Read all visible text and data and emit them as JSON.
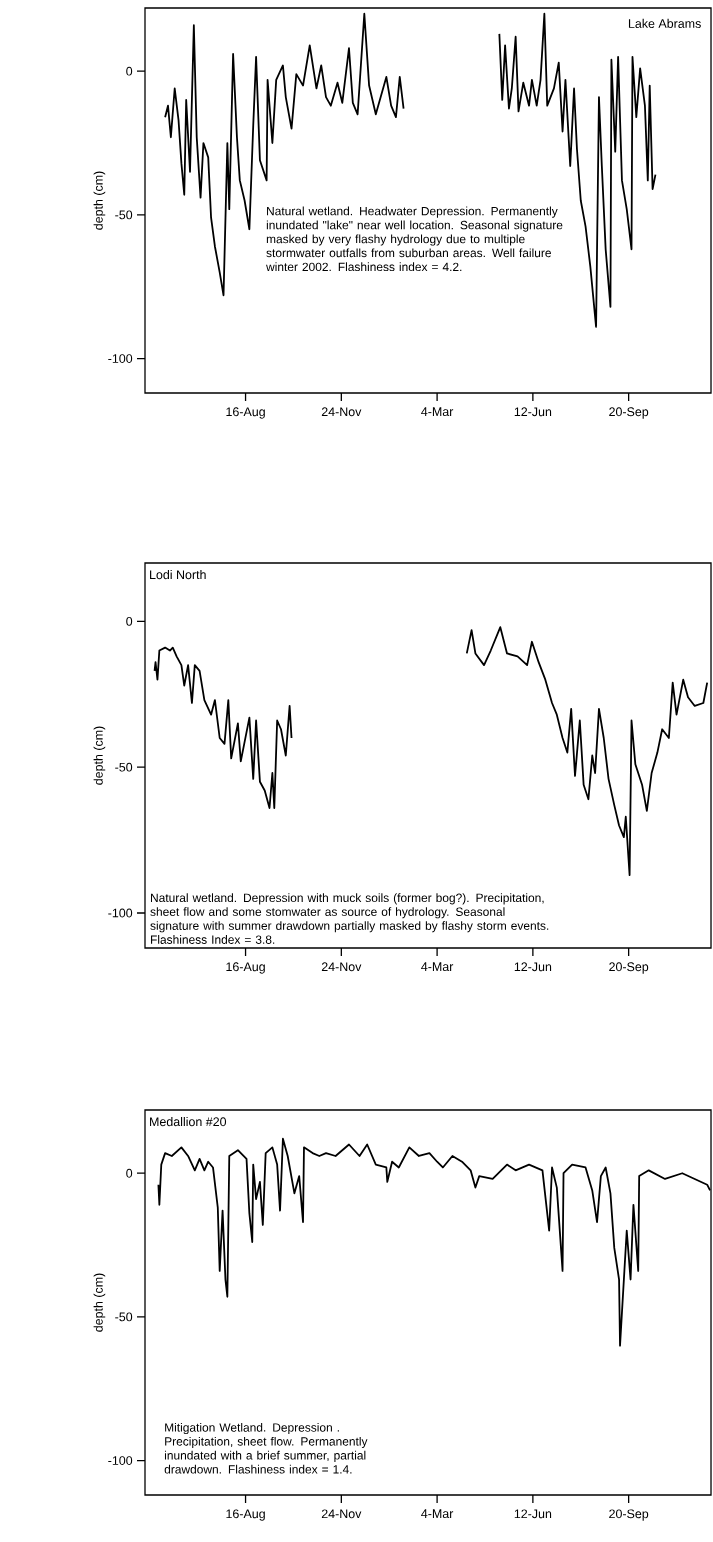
{
  "chart_data": [
    {
      "type": "line",
      "title": "Lake Abrams",
      "ylabel": "depth (cm)",
      "color": "#000000",
      "annotations": [
        "Natural wetland. Headwater Depression. Permanently inundated \"lake\" near well location. Seasonal signature masked by very flashy hydrology due to multiple stormwater outfalls from suburban areas. Well failure winter 2002. Flashiness index = 4.2."
      ],
      "xlim": [
        "2001-05-03",
        "2002-12-15"
      ],
      "ylim": [
        -112,
        22
      ],
      "xticks": [
        {
          "value": "2001-08-16",
          "label": "16-Aug"
        },
        {
          "value": "2001-11-24",
          "label": "24-Nov"
        },
        {
          "value": "2002-03-04",
          "label": "4-Mar"
        },
        {
          "value": "2002-06-12",
          "label": "12-Jun"
        },
        {
          "value": "2002-09-20",
          "label": "20-Sep"
        }
      ],
      "yticks": [
        0,
        -50,
        -100
      ],
      "x": [
        "2001-05-24",
        "2001-05-27",
        "2001-05-30",
        "2001-06-03",
        "2001-06-07",
        "2001-06-10",
        "2001-06-13",
        "2001-06-15",
        "2001-06-19",
        "2001-06-23",
        "2001-06-26",
        "2001-06-30",
        "2001-07-03",
        "2001-07-08",
        "2001-07-11",
        "2001-07-15",
        "2001-07-20",
        "2001-07-24",
        "2001-07-28",
        "2001-07-30",
        "2001-08-03",
        "2001-08-07",
        "2001-08-10",
        "2001-08-15",
        "2001-08-20",
        "2001-08-24",
        "2001-08-27",
        "2001-08-31",
        "2001-09-07",
        "2001-09-08",
        "2001-09-13",
        "2001-09-17",
        "2001-09-24",
        "2001-09-27",
        "2001-10-03",
        "2001-10-08",
        "2001-10-15",
        "2001-10-22",
        "2001-10-29",
        "2001-11-03",
        "2001-11-08",
        "2001-11-13",
        "2001-11-20",
        "2001-11-25",
        "2001-12-02",
        "2001-12-06",
        "2001-12-11",
        "2001-12-18",
        "2001-12-23",
        "2001-12-30",
        "2002-01-10",
        "2002-01-15",
        "2002-01-20",
        "2002-01-24",
        "2002-01-28",
        "2002-03-19",
        "2002-05-08",
        "2002-05-11",
        "2002-05-14",
        "2002-05-18",
        "2002-05-21",
        "2002-05-25",
        "2002-05-28",
        "2002-06-02",
        "2002-06-08",
        "2002-06-11",
        "2002-06-16",
        "2002-06-20",
        "2002-06-24",
        "2002-06-27",
        "2002-07-04",
        "2002-07-09",
        "2002-07-13",
        "2002-07-16",
        "2002-07-21",
        "2002-07-25",
        "2002-07-28",
        "2002-08-01",
        "2002-08-06",
        "2002-08-11",
        "2002-08-17",
        "2002-08-20",
        "2002-08-23",
        "2002-08-27",
        "2002-09-01",
        "2002-09-02",
        "2002-09-06",
        "2002-09-09",
        "2002-09-13",
        "2002-09-18",
        "2002-09-23",
        "2002-09-24",
        "2002-09-28",
        "2002-10-02",
        "2002-10-07",
        "2002-10-10",
        "2002-10-12",
        "2002-10-15",
        "2002-10-18"
      ],
      "values": [
        -16,
        -12,
        -23,
        -6,
        -17,
        -32,
        -43,
        -10,
        -35,
        16,
        -23,
        -44,
        -25,
        -30,
        -51,
        -61,
        -70,
        -78,
        -25,
        -48,
        6,
        -23,
        -38,
        -45,
        -55,
        -19,
        5,
        -31,
        -38,
        -3,
        -25,
        -3,
        2,
        -9,
        -20,
        -1,
        -5,
        9,
        -6,
        2,
        -9,
        -12,
        -4,
        -11,
        8,
        -11,
        -15,
        20,
        -5,
        -15,
        -2,
        -12,
        -16,
        -2,
        -13,
        null,
        13,
        -10,
        9,
        -13,
        -6,
        12,
        -14,
        -4,
        -12,
        -3,
        -12,
        -3,
        20,
        -12,
        -6,
        3,
        -21,
        -3,
        -33,
        -6,
        -27,
        -45,
        -54,
        -68,
        -89,
        -9,
        -33,
        -62,
        -82,
        4,
        -28,
        5,
        -38,
        -48,
        -62,
        5,
        -16,
        1,
        -12,
        -38,
        -5,
        -41,
        -36
      ]
    },
    {
      "type": "line",
      "title": "Lodi North",
      "ylabel": "depth (cm)",
      "color": "#000000",
      "annotations": [
        "Natural wetland. Depression with muck soils (former bog?). Precipitation, sheet flow and some stomwater as source of hydrology. Seasonal signature with summer drawdown partially masked by flashy storm events. Flashiness Index = 3.8."
      ],
      "xlim": [
        "2001-05-03",
        "2002-12-15"
      ],
      "ylim": [
        -112,
        20
      ],
      "xticks": [
        {
          "value": "2001-08-16",
          "label": "16-Aug"
        },
        {
          "value": "2001-11-24",
          "label": "24-Nov"
        },
        {
          "value": "2002-03-04",
          "label": "4-Mar"
        },
        {
          "value": "2002-06-12",
          "label": "12-Jun"
        },
        {
          "value": "2002-09-20",
          "label": "20-Sep"
        }
      ],
      "yticks": [
        0,
        -50,
        -100
      ],
      "x": [
        "2001-05-13",
        "2001-05-14",
        "2001-05-16",
        "2001-05-18",
        "2001-05-24",
        "2001-05-29",
        "2001-06-01",
        "2001-06-05",
        "2001-06-10",
        "2001-06-13",
        "2001-06-17",
        "2001-06-21",
        "2001-06-24",
        "2001-06-29",
        "2001-07-04",
        "2001-07-11",
        "2001-07-15",
        "2001-07-20",
        "2001-07-25",
        "2001-07-29",
        "2001-08-01",
        "2001-08-08",
        "2001-08-11",
        "2001-08-20",
        "2001-08-24",
        "2001-08-27",
        "2001-08-31",
        "2001-09-05",
        "2001-09-10",
        "2001-09-13",
        "2001-09-15",
        "2001-09-18",
        "2001-09-22",
        "2001-09-27",
        "2001-10-01",
        "2001-10-03",
        "2002-01-03",
        "2002-04-04",
        "2002-04-09",
        "2002-04-13",
        "2002-04-22",
        "2002-04-29",
        "2002-05-09",
        "2002-05-16",
        "2002-05-27",
        "2002-06-06",
        "2002-06-11",
        "2002-06-18",
        "2002-06-25",
        "2002-07-02",
        "2002-07-07",
        "2002-07-13",
        "2002-07-18",
        "2002-07-22",
        "2002-07-26",
        "2002-07-31",
        "2002-08-04",
        "2002-08-09",
        "2002-08-13",
        "2002-08-16",
        "2002-08-20",
        "2002-08-25",
        "2002-08-30",
        "2002-09-05",
        "2002-09-10",
        "2002-09-15",
        "2002-09-17",
        "2002-09-21",
        "2002-09-23",
        "2002-09-27",
        "2002-10-04",
        "2002-10-09",
        "2002-10-14",
        "2002-10-20",
        "2002-10-25",
        "2002-11-01",
        "2002-11-05",
        "2002-11-09",
        "2002-11-16",
        "2002-11-21",
        "2002-11-28",
        "2002-12-07",
        "2002-12-11"
      ],
      "values": [
        -17,
        -14,
        -20,
        -10,
        -9,
        -10,
        -9,
        -12,
        -15,
        -22,
        -15,
        -28,
        -15,
        -17,
        -27,
        -32,
        -27,
        -40,
        -42,
        -27,
        -47,
        -35,
        -48,
        -33,
        -54,
        -34,
        -55,
        -58,
        -64,
        -52,
        -64,
        -34,
        -37,
        -46,
        -29,
        -40,
        null,
        -11,
        -3,
        -11,
        -15,
        -10,
        -2,
        -11,
        -12,
        -15,
        -7,
        -14,
        -20,
        -28,
        -32,
        -40,
        -45,
        -30,
        -53,
        -34,
        -56,
        -61,
        -46,
        -52,
        -30,
        -40,
        -54,
        -63,
        -70,
        -74,
        -67,
        -87,
        -34,
        -49,
        -56,
        -65,
        -52,
        -45,
        -37,
        -40,
        -21,
        -32,
        -20,
        -26,
        -29,
        -28,
        -21
      ]
    },
    {
      "type": "line",
      "title": "Medallion #20",
      "ylabel": "depth (cm)",
      "color": "#000000",
      "annotations": [
        "Mitigation Wetland. Depression . Precipitation, sheet flow. Permanently inundated with a brief summer, partial drawdown. Flashiness index = 1.4."
      ],
      "xlim": [
        "2001-05-03",
        "2002-12-15"
      ],
      "ylim": [
        -112,
        22
      ],
      "xticks": [
        {
          "value": "2001-08-16",
          "label": "16-Aug"
        },
        {
          "value": "2001-11-24",
          "label": "24-Nov"
        },
        {
          "value": "2002-03-04",
          "label": "4-Mar"
        },
        {
          "value": "2002-06-12",
          "label": "12-Jun"
        },
        {
          "value": "2002-09-20",
          "label": "20-Sep"
        }
      ],
      "yticks": [
        0,
        -50,
        -100
      ],
      "x": [
        "2001-05-17",
        "2001-05-18",
        "2001-05-20",
        "2001-05-24",
        "2001-05-31",
        "2001-06-10",
        "2001-06-17",
        "2001-06-24",
        "2001-06-29",
        "2001-07-04",
        "2001-07-08",
        "2001-07-13",
        "2001-07-18",
        "2001-07-20",
        "2001-07-23",
        "2001-07-26",
        "2001-07-28",
        "2001-07-30",
        "2001-08-08",
        "2001-08-17",
        "2001-08-20",
        "2001-08-23",
        "2001-08-24",
        "2001-08-27",
        "2001-08-31",
        "2001-09-03",
        "2001-09-06",
        "2001-09-13",
        "2001-09-18",
        "2001-09-21",
        "2001-09-24",
        "2001-09-29",
        "2001-10-06",
        "2001-10-11",
        "2001-10-15",
        "2001-10-16",
        "2001-10-25",
        "2001-11-01",
        "2001-11-08",
        "2001-11-18",
        "2001-12-02",
        "2001-12-13",
        "2001-12-21",
        "2001-12-30",
        "2002-01-10",
        "2002-01-11",
        "2002-01-16",
        "2002-01-23",
        "2002-02-03",
        "2002-02-13",
        "2002-02-24",
        "2002-03-04",
        "2002-03-10",
        "2002-03-20",
        "2002-03-30",
        "2002-04-08",
        "2002-04-13",
        "2002-04-17",
        "2002-05-01",
        "2002-05-16",
        "2002-05-25",
        "2002-06-08",
        "2002-06-22",
        "2002-06-29",
        "2002-07-02",
        "2002-07-07",
        "2002-07-13",
        "2002-07-14",
        "2002-07-23",
        "2002-08-06",
        "2002-08-13",
        "2002-08-18",
        "2002-08-22",
        "2002-08-27",
        "2002-09-01",
        "2002-09-05",
        "2002-09-10",
        "2002-09-11",
        "2002-09-18",
        "2002-09-22",
        "2002-09-25",
        "2002-09-30",
        "2002-10-01",
        "2002-10-11",
        "2002-10-28",
        "2002-11-15",
        "2002-11-28",
        "2002-12-11",
        "2002-12-14"
      ],
      "values": [
        -4,
        -11,
        3,
        7,
        6,
        9,
        6,
        1,
        5,
        1,
        4,
        2,
        -12,
        -34,
        -13,
        -37,
        -43,
        6,
        8,
        5,
        -14,
        -24,
        3,
        -9,
        -3,
        -18,
        7,
        9,
        3,
        -13,
        12,
        6,
        -7,
        -1,
        -17,
        9,
        7,
        6,
        7,
        6,
        10,
        6,
        10,
        3,
        2,
        -3,
        4,
        2,
        9,
        6,
        7,
        4,
        2,
        6,
        4,
        1,
        -5,
        -1,
        -2,
        3,
        1,
        3,
        1,
        -20,
        2,
        -5,
        -34,
        0,
        3,
        2,
        -6,
        -17,
        -1,
        2,
        -7,
        -26,
        -37,
        -60,
        -20,
        -37,
        -11,
        -34,
        -1,
        1,
        -2,
        0,
        -2,
        -4,
        -6
      ]
    }
  ]
}
